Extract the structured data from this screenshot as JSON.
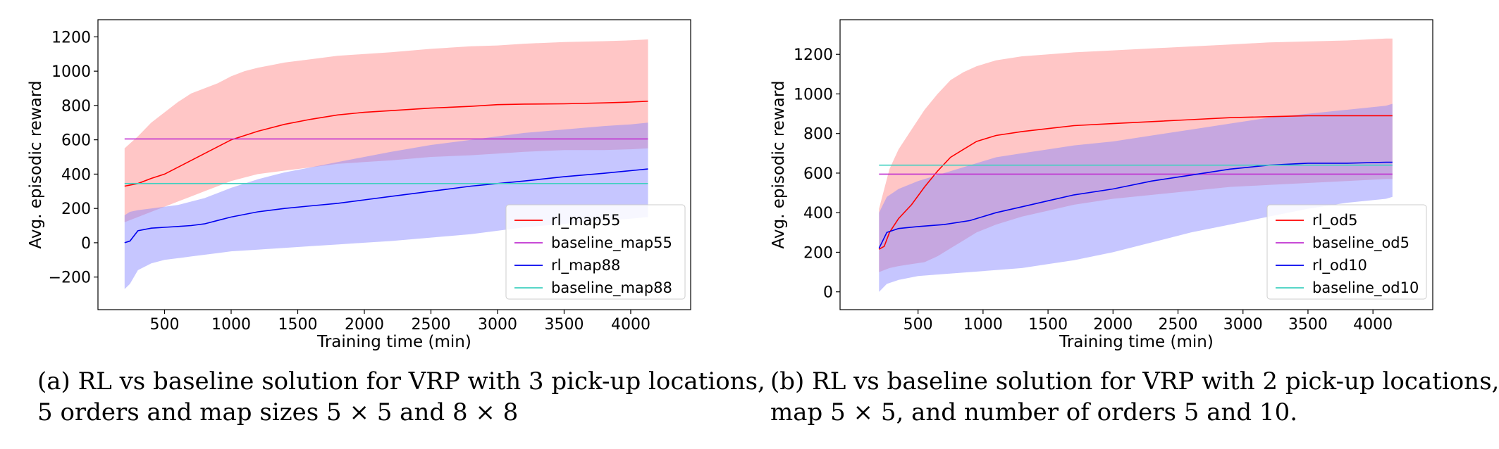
{
  "chart_data": [
    {
      "type": "line",
      "ylabel": "Avg. episodic reward",
      "xlabel": "Training time (min)",
      "xlim": [
        0,
        4450
      ],
      "ylim": [
        -390,
        1300
      ],
      "xticks": [
        500,
        1000,
        1500,
        2000,
        2500,
        3000,
        3500,
        4000
      ],
      "yticks": [
        -200,
        0,
        200,
        400,
        600,
        800,
        1000,
        1200
      ],
      "grid": false,
      "legend_position": "lower-right",
      "caption": {
        "line1": "(a) RL vs baseline solution for VRP with 3 pick-up locations,",
        "line2a": "5 orders and map sizes ",
        "math1": "5 × 5",
        "line2b": " and ",
        "math2": "8 × 8"
      },
      "series": [
        {
          "name": "rl_map55",
          "kind": "line",
          "color": "#ff0000",
          "x": [
            200,
            300,
            400,
            500,
            600,
            700,
            800,
            900,
            1000,
            1100,
            1200,
            1400,
            1600,
            1800,
            2000,
            2200,
            2500,
            2800,
            3000,
            3200,
            3500,
            3800,
            4000,
            4130
          ],
          "y": [
            330,
            345,
            375,
            400,
            440,
            480,
            520,
            560,
            600,
            625,
            650,
            690,
            720,
            745,
            760,
            770,
            785,
            795,
            805,
            808,
            810,
            815,
            820,
            825
          ],
          "band_upper": [
            550,
            620,
            700,
            760,
            820,
            870,
            900,
            930,
            970,
            1000,
            1020,
            1050,
            1070,
            1090,
            1100,
            1110,
            1130,
            1145,
            1150,
            1160,
            1170,
            1175,
            1180,
            1185
          ],
          "band_lower": [
            120,
            150,
            180,
            210,
            240,
            270,
            300,
            330,
            360,
            380,
            400,
            420,
            440,
            460,
            470,
            480,
            500,
            510,
            520,
            530,
            540,
            540,
            545,
            550
          ]
        },
        {
          "name": "baseline_map55",
          "kind": "hline",
          "color": "#c030d0",
          "x": [
            200,
            4130
          ],
          "y": [
            605,
            605
          ]
        },
        {
          "name": "rl_map88",
          "kind": "line",
          "color": "#0000ee",
          "x": [
            200,
            240,
            300,
            400,
            500,
            600,
            700,
            800,
            900,
            1000,
            1200,
            1400,
            1600,
            1800,
            2000,
            2200,
            2500,
            2800,
            3000,
            3200,
            3500,
            3800,
            4000,
            4130
          ],
          "y": [
            0,
            10,
            70,
            85,
            90,
            95,
            100,
            110,
            130,
            150,
            180,
            200,
            215,
            230,
            250,
            270,
            300,
            330,
            345,
            360,
            385,
            405,
            420,
            430
          ],
          "band_upper": [
            160,
            180,
            190,
            200,
            210,
            220,
            240,
            260,
            290,
            320,
            370,
            410,
            440,
            470,
            500,
            530,
            570,
            600,
            620,
            640,
            660,
            680,
            690,
            700
          ],
          "band_lower": [
            -270,
            -240,
            -160,
            -120,
            -100,
            -90,
            -80,
            -70,
            -60,
            -50,
            -40,
            -30,
            -20,
            -10,
            0,
            10,
            30,
            50,
            70,
            90,
            110,
            130,
            140,
            150
          ]
        },
        {
          "name": "baseline_map88",
          "kind": "hline",
          "color": "#40d0c0",
          "x": [
            200,
            4130
          ],
          "y": [
            345,
            345
          ]
        }
      ]
    },
    {
      "type": "line",
      "ylabel": "Avg. episodic reward",
      "xlabel": "Training time (min)",
      "xlim": [
        -100,
        4460
      ],
      "ylim": [
        -90,
        1375
      ],
      "xticks": [
        500,
        1000,
        1500,
        2000,
        2500,
        3000,
        3500,
        4000
      ],
      "yticks": [
        0,
        200,
        400,
        600,
        800,
        1000,
        1200
      ],
      "grid": false,
      "legend_position": "lower-right",
      "caption": {
        "line1": "(b) RL vs baseline solution for VRP with 2 pick-up locations,",
        "line2a": "map ",
        "math1": "5 × 5",
        "line2b": ", and number of orders 5 and 10."
      },
      "series": [
        {
          "name": "rl_od5",
          "kind": "line",
          "color": "#ff0000",
          "x": [
            200,
            240,
            280,
            350,
            450,
            550,
            650,
            750,
            850,
            950,
            1100,
            1300,
            1500,
            1700,
            2000,
            2300,
            2600,
            2900,
            3200,
            3500,
            3800,
            4100,
            4150
          ],
          "y": [
            215,
            230,
            300,
            370,
            440,
            530,
            610,
            680,
            720,
            760,
            790,
            810,
            825,
            840,
            850,
            860,
            870,
            880,
            885,
            890,
            890,
            890,
            890
          ],
          "band_upper": [
            420,
            520,
            620,
            720,
            820,
            920,
            1000,
            1070,
            1110,
            1140,
            1170,
            1190,
            1200,
            1210,
            1220,
            1230,
            1240,
            1250,
            1260,
            1265,
            1270,
            1280,
            1280
          ],
          "band_lower": [
            100,
            110,
            120,
            130,
            140,
            150,
            180,
            220,
            260,
            300,
            340,
            380,
            410,
            440,
            470,
            490,
            510,
            530,
            540,
            550,
            560,
            570,
            570
          ]
        },
        {
          "name": "baseline_od5",
          "kind": "hline",
          "color": "#c030d0",
          "x": [
            200,
            4150
          ],
          "y": [
            595,
            595
          ]
        },
        {
          "name": "rl_od10",
          "kind": "line",
          "color": "#0000ee",
          "x": [
            200,
            260,
            350,
            500,
            700,
            900,
            1100,
            1300,
            1500,
            1700,
            2000,
            2300,
            2600,
            2900,
            3200,
            3500,
            3800,
            4100,
            4150
          ],
          "y": [
            220,
            300,
            320,
            330,
            340,
            360,
            400,
            430,
            460,
            490,
            520,
            560,
            590,
            620,
            640,
            650,
            650,
            655,
            655
          ],
          "band_upper": [
            400,
            480,
            520,
            560,
            600,
            640,
            680,
            700,
            720,
            740,
            760,
            790,
            820,
            850,
            880,
            900,
            920,
            940,
            950
          ],
          "band_lower": [
            0,
            40,
            60,
            80,
            90,
            100,
            110,
            120,
            140,
            160,
            200,
            250,
            300,
            340,
            380,
            420,
            450,
            470,
            480
          ]
        },
        {
          "name": "baseline_od10",
          "kind": "hline",
          "color": "#40d0c0",
          "x": [
            200,
            4150
          ],
          "y": [
            640,
            640
          ]
        }
      ]
    }
  ]
}
